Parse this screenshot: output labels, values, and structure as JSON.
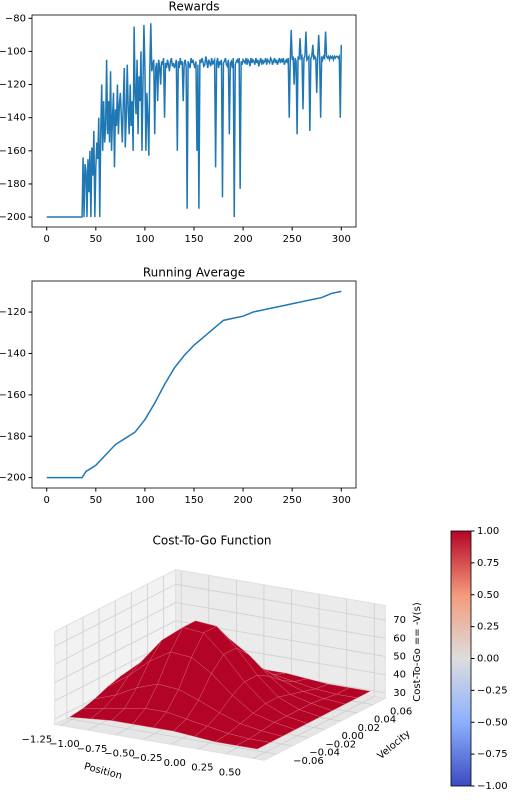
{
  "chart_data": [
    {
      "type": "line",
      "title": "Rewards",
      "color": "#1f77b4",
      "x": [
        0,
        1,
        2,
        3,
        4,
        5,
        6,
        7,
        8,
        9,
        10,
        11,
        12,
        13,
        14,
        15,
        16,
        17,
        18,
        19,
        20,
        21,
        22,
        23,
        24,
        25,
        26,
        27,
        28,
        29,
        30,
        31,
        32,
        33,
        34,
        35,
        36,
        37,
        38,
        39,
        40,
        41,
        42,
        43,
        44,
        45,
        46,
        47,
        48,
        49,
        50,
        51,
        52,
        53,
        54,
        55,
        56,
        57,
        58,
        59,
        60,
        61,
        62,
        63,
        64,
        65,
        66,
        67,
        68,
        69,
        70,
        71,
        72,
        73,
        74,
        75,
        76,
        77,
        78,
        79,
        80,
        81,
        82,
        83,
        84,
        85,
        86,
        87,
        88,
        89,
        90,
        91,
        92,
        93,
        94,
        95,
        96,
        97,
        98,
        99,
        100,
        101,
        102,
        103,
        104,
        105,
        106,
        107,
        108,
        109,
        110,
        111,
        112,
        113,
        114,
        115,
        116,
        117,
        118,
        119,
        120,
        121,
        122,
        123,
        124,
        125,
        126,
        127,
        128,
        129,
        130,
        131,
        132,
        133,
        134,
        135,
        136,
        137,
        138,
        139,
        140,
        141,
        142,
        143,
        144,
        145,
        146,
        147,
        148,
        149,
        150,
        151,
        152,
        153,
        154,
        155,
        156,
        157,
        158,
        159,
        160,
        161,
        162,
        163,
        164,
        165,
        166,
        167,
        168,
        169,
        170,
        171,
        172,
        173,
        174,
        175,
        176,
        177,
        178,
        179,
        180,
        181,
        182,
        183,
        184,
        185,
        186,
        187,
        188,
        189,
        190,
        191,
        192,
        193,
        194,
        195,
        196,
        197,
        198,
        199,
        200,
        201,
        202,
        203,
        204,
        205,
        206,
        207,
        208,
        209,
        210,
        211,
        212,
        213,
        214,
        215,
        216,
        217,
        218,
        219,
        220,
        221,
        222,
        223,
        224,
        225,
        226,
        227,
        228,
        229,
        230,
        231,
        232,
        233,
        234,
        235,
        236,
        237,
        238,
        239,
        240,
        241,
        242,
        243,
        244,
        245,
        246,
        247,
        248,
        249,
        250,
        251,
        252,
        253,
        254,
        255,
        256,
        257,
        258,
        259,
        260,
        261,
        262,
        263,
        264,
        265,
        266,
        267,
        268,
        269,
        270,
        271,
        272,
        273,
        274,
        275,
        276,
        277,
        278,
        279,
        280,
        281,
        282,
        283,
        284,
        285,
        286,
        287,
        288,
        289,
        290,
        291,
        292,
        293,
        294,
        295,
        296,
        297,
        298,
        299,
        300
      ],
      "values": [
        -200,
        -200,
        -200,
        -200,
        -200,
        -200,
        -200,
        -200,
        -200,
        -200,
        -200,
        -200,
        -200,
        -200,
        -200,
        -200,
        -200,
        -200,
        -200,
        -200,
        -200,
        -200,
        -200,
        -200,
        -200,
        -200,
        -200,
        -200,
        -200,
        -200,
        -200,
        -200,
        -200,
        -200,
        -200,
        -200,
        -200,
        -164,
        -200,
        -168,
        -172,
        -200,
        -165,
        -185,
        -160,
        -200,
        -158,
        -175,
        -148,
        -200,
        -170,
        -155,
        -165,
        -140,
        -200,
        -150,
        -120,
        -160,
        -130,
        -155,
        -145,
        -105,
        -150,
        -130,
        -155,
        -112,
        -160,
        -140,
        -125,
        -170,
        -135,
        -145,
        -120,
        -150,
        -132,
        -125,
        -140,
        -155,
        -130,
        -110,
        -158,
        -140,
        -108,
        -135,
        -150,
        -120,
        -145,
        -130,
        -160,
        -85,
        -125,
        -138,
        -105,
        -150,
        -115,
        -130,
        -100,
        -160,
        -120,
        -84,
        -110,
        -160,
        -125,
        -140,
        -163,
        -110,
        -83,
        -112,
        -108,
        -105,
        -150,
        -110,
        -107,
        -130,
        -105,
        -109,
        -120,
        -106,
        -108,
        -104,
        -140,
        -107,
        -110,
        -105,
        -108,
        -112,
        -106,
        -104,
        -109,
        -107,
        -110,
        -108,
        -105,
        -160,
        -106,
        -110,
        -104,
        -108,
        -106,
        -130,
        -107,
        -105,
        -109,
        -195,
        -106,
        -108,
        -110,
        -104,
        -107,
        -105,
        -108,
        -110,
        -106,
        -160,
        -108,
        -195,
        -105,
        -107,
        -104,
        -106,
        -109,
        -108,
        -103,
        -106,
        -110,
        -105,
        -107,
        -109,
        -104,
        -108,
        -106,
        -105,
        -170,
        -107,
        -104,
        -110,
        -106,
        -108,
        -105,
        -188,
        -107,
        -106,
        -104,
        -108,
        -109,
        -105,
        -150,
        -107,
        -106,
        -110,
        -104,
        -200,
        -108,
        -106,
        -105,
        -107,
        -104,
        -183,
        -106,
        -108,
        -105,
        -106,
        -107,
        -104,
        -108,
        -105,
        -106,
        -109,
        -104,
        -107,
        -105,
        -106,
        -108,
        -104,
        -107,
        -105,
        -109,
        -106,
        -104,
        -108,
        -105,
        -107,
        -106,
        -104,
        -108,
        -105,
        -106,
        -107,
        -104,
        -105,
        -108,
        -106,
        -104,
        -107,
        -105,
        -108,
        -106,
        -104,
        -107,
        -105,
        -106,
        -104,
        -108,
        -106,
        -105,
        -107,
        -104,
        -140,
        -106,
        -87,
        -105,
        -103,
        -120,
        -104,
        -106,
        -150,
        -103,
        -105,
        -92,
        -104,
        -103,
        -135,
        -104,
        -103,
        -88,
        -105,
        -104,
        -103,
        -148,
        -104,
        -103,
        -96,
        -105,
        -103,
        -104,
        -125,
        -103,
        -90,
        -104,
        -140,
        -103,
        -105,
        -103,
        -104,
        -88,
        -103,
        -104,
        -103,
        -105,
        -103,
        -104,
        -103,
        -105,
        -103,
        -104,
        -103,
        -103,
        -104,
        -103,
        -140,
        -96
      ],
      "xlim": [
        -15,
        315
      ],
      "xticks": [
        0,
        50,
        100,
        150,
        200,
        250,
        300
      ],
      "ylim": [
        -206,
        -78
      ],
      "yticks": [
        {
          "value": -200,
          "label": "−200"
        },
        {
          "value": -180,
          "label": "−180"
        },
        {
          "value": -160,
          "label": "−160"
        },
        {
          "value": -140,
          "label": "−140"
        },
        {
          "value": -120,
          "label": "−120"
        },
        {
          "value": -100,
          "label": "−100"
        },
        {
          "value": -80,
          "label": "−80"
        }
      ]
    },
    {
      "type": "line",
      "title": "Running Average",
      "color": "#1f77b4",
      "x": [
        0,
        36,
        40,
        50,
        60,
        70,
        80,
        90,
        100,
        110,
        120,
        130,
        140,
        150,
        160,
        170,
        180,
        190,
        200,
        210,
        220,
        230,
        240,
        250,
        260,
        270,
        280,
        290,
        300
      ],
      "values": [
        -200,
        -200,
        -197,
        -194,
        -189,
        -184,
        -181,
        -178,
        -172,
        -164,
        -155,
        -147,
        -141,
        -136,
        -132,
        -128,
        -124,
        -123,
        -122,
        -120,
        -119,
        -118,
        -117,
        -116,
        -115,
        -114,
        -113,
        -111,
        -110
      ],
      "xlim": [
        -15,
        315
      ],
      "xticks": [
        0,
        50,
        100,
        150,
        200,
        250,
        300
      ],
      "ylim": [
        -205,
        -105
      ],
      "yticks": [
        {
          "value": -200,
          "label": "−200"
        },
        {
          "value": -180,
          "label": "−180"
        },
        {
          "value": -160,
          "label": "−160"
        },
        {
          "value": -140,
          "label": "−140"
        },
        {
          "value": -120,
          "label": "−120"
        }
      ]
    },
    {
      "type": "surface",
      "title": "Cost-To-Go Function",
      "xlabel": "Position",
      "ylabel": "Velocity",
      "zlabel": "Cost-To-Go == -V(s)",
      "color": "#b40426",
      "x": [
        -1.2,
        -1.01,
        -0.82,
        -0.63,
        -0.44,
        -0.26,
        -0.07,
        0.12,
        0.31,
        0.5
      ],
      "y": [
        -0.07,
        -0.054,
        -0.039,
        -0.023,
        -0.008,
        0.008,
        0.023,
        0.039,
        0.054,
        0.07
      ],
      "z": [
        [
          31,
          32,
          33,
          33,
          33,
          33,
          32,
          31,
          31,
          31
        ],
        [
          32,
          34,
          36,
          38,
          38,
          36,
          34,
          32,
          31,
          31
        ],
        [
          34,
          38,
          44,
          48,
          47,
          43,
          38,
          34,
          32,
          31
        ],
        [
          37,
          45,
          55,
          62,
          61,
          54,
          44,
          36,
          33,
          31
        ],
        [
          39,
          49,
          63,
          72,
          71,
          61,
          48,
          38,
          33,
          31
        ],
        [
          39,
          49,
          63,
          72,
          71,
          61,
          48,
          38,
          33,
          31
        ],
        [
          37,
          45,
          55,
          62,
          61,
          54,
          44,
          36,
          33,
          31
        ],
        [
          34,
          38,
          44,
          48,
          47,
          43,
          38,
          34,
          32,
          31
        ],
        [
          32,
          34,
          36,
          38,
          38,
          36,
          34,
          32,
          31,
          31
        ],
        [
          31,
          32,
          33,
          33,
          33,
          33,
          32,
          31,
          31,
          31
        ]
      ],
      "xlim": [
        -1.3,
        0.6
      ],
      "xticks": [
        {
          "value": -1.25,
          "label": "−1.25"
        },
        {
          "value": -1.0,
          "label": "−1.00"
        },
        {
          "value": -0.75,
          "label": "−0.75"
        },
        {
          "value": -0.5,
          "label": "−0.50"
        },
        {
          "value": -0.25,
          "label": "−0.25"
        },
        {
          "value": 0,
          "label": "0.00"
        },
        0.25,
        {
          "value": 0.5,
          "label": "0.50"
        }
      ],
      "ylim": [
        -0.075,
        0.075
      ],
      "yticks": [
        {
          "value": -0.06,
          "label": "−0.06"
        },
        {
          "value": -0.04,
          "label": "−0.04"
        },
        {
          "value": -0.02,
          "label": "−0.02"
        },
        {
          "value": 0,
          "label": "0.00"
        },
        0.02,
        0.04,
        0.06
      ],
      "zlim": [
        27,
        78
      ],
      "zticks": [
        30,
        40,
        50,
        60,
        70
      ],
      "colorbar": {
        "lim": [
          -1,
          1
        ],
        "ticks": [
          {
            "value": 1,
            "label": "1.00"
          },
          0.75,
          {
            "value": 0.5,
            "label": "0.50"
          },
          0.25,
          {
            "value": 0,
            "label": "0.00"
          },
          {
            "value": -0.25,
            "label": "−0.25"
          },
          {
            "value": -0.5,
            "label": "−0.50"
          },
          {
            "value": -0.75,
            "label": "−0.75"
          },
          {
            "value": -1,
            "label": "−1.00"
          }
        ]
      }
    }
  ]
}
